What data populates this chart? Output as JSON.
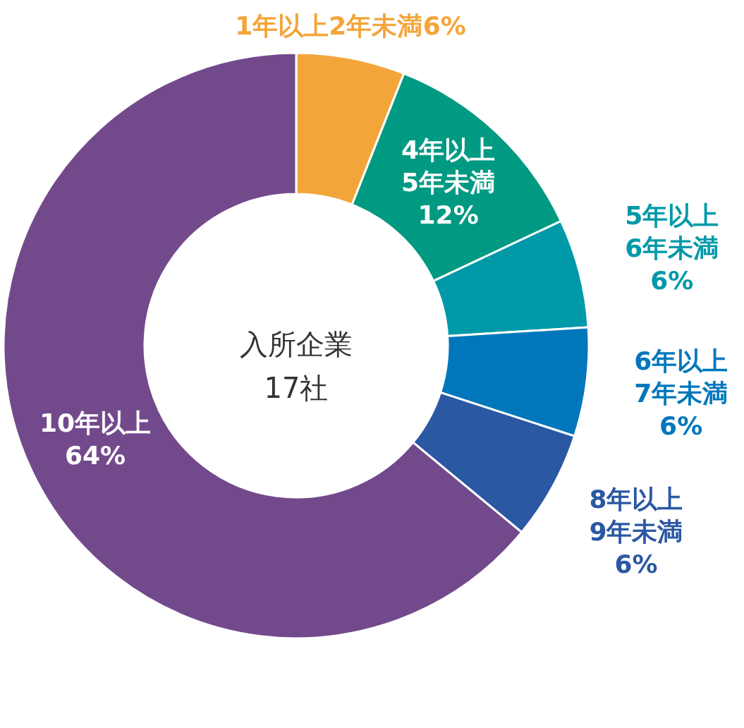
{
  "chart_data": {
    "type": "donut",
    "title": "入所企業",
    "subtitle": "17社",
    "categories": [
      "1年以上2年未満",
      "4年以上5年未満",
      "5年以上6年未満",
      "6年以上7年未満",
      "8年以上9年未満",
      "10年以上"
    ],
    "values": [
      6,
      12,
      6,
      6,
      6,
      64
    ],
    "colors": [
      "#f4a53a",
      "#009a82",
      "#0099a8",
      "#0077bb",
      "#2b58a3",
      "#724a8c"
    ],
    "value_labels": [
      "6%",
      "12%",
      "6%",
      "6%",
      "6%",
      "64%"
    ]
  }
}
